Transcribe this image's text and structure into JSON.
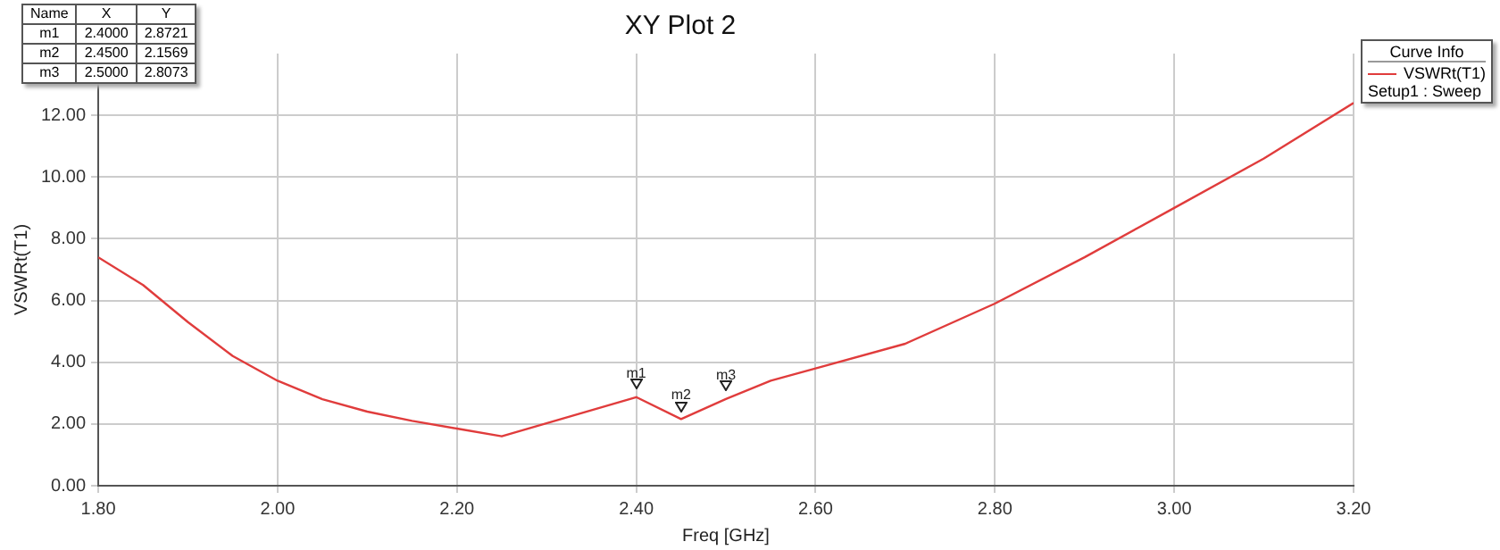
{
  "chart_data": {
    "type": "line",
    "title": "XY Plot 2",
    "xlabel": "Freq [GHz]",
    "ylabel": "VSWRt(T1)",
    "legend_title": "Curve Info",
    "legend": "top right",
    "grid": true,
    "marker": "none",
    "line_style": "solid",
    "xlim": [
      1.8,
      3.2
    ],
    "xticks": [
      {
        "value": 1.8,
        "label": "1.80"
      },
      {
        "value": 2.0,
        "label": "2.00"
      },
      {
        "value": 2.2,
        "label": "2.20"
      },
      {
        "value": 2.4,
        "label": "2.40"
      },
      {
        "value": 2.6,
        "label": "2.60"
      },
      {
        "value": 2.8,
        "label": "2.80"
      },
      {
        "value": 3.0,
        "label": "3.00"
      },
      {
        "value": 3.2,
        "label": "3.20"
      }
    ],
    "ylim": [
      0,
      14
    ],
    "yticks": [
      {
        "value": 0,
        "label": "0.00"
      },
      {
        "value": 2,
        "label": "2.00"
      },
      {
        "value": 4,
        "label": "4.00"
      },
      {
        "value": 6,
        "label": "6.00"
      },
      {
        "value": 8,
        "label": "8.00"
      },
      {
        "value": 10,
        "label": "10.00"
      },
      {
        "value": 12,
        "label": "12.00"
      }
    ],
    "x": [
      1.8,
      1.85,
      1.9,
      1.95,
      2.0,
      2.05,
      2.1,
      2.15,
      2.2,
      2.25,
      2.4,
      2.45,
      2.5,
      2.55,
      2.6,
      2.7,
      2.8,
      2.9,
      3.0,
      3.1,
      3.2
    ],
    "series": [
      {
        "name": "VSWRt(T1)",
        "color": "#e03c3c",
        "values": [
          7.4,
          6.5,
          5.3,
          4.2,
          3.4,
          2.8,
          2.4,
          2.1,
          1.85,
          1.6,
          2.87,
          2.16,
          2.81,
          3.4,
          3.8,
          4.6,
          5.9,
          7.4,
          9.0,
          10.6,
          12.4
        ]
      }
    ],
    "annotations": [
      "Setup1 : Sweep",
      "Name",
      "X",
      "Y",
      "2.4000",
      "2.8721",
      "2.4500",
      "2.1569",
      "2.5000",
      "2.8073",
      {
        "text": "m1",
        "x": 2.4,
        "y": 2.8721
      },
      {
        "text": "m2",
        "x": 2.45,
        "y": 2.1569
      },
      {
        "text": "m3",
        "x": 2.5,
        "y": 2.8073
      }
    ]
  }
}
